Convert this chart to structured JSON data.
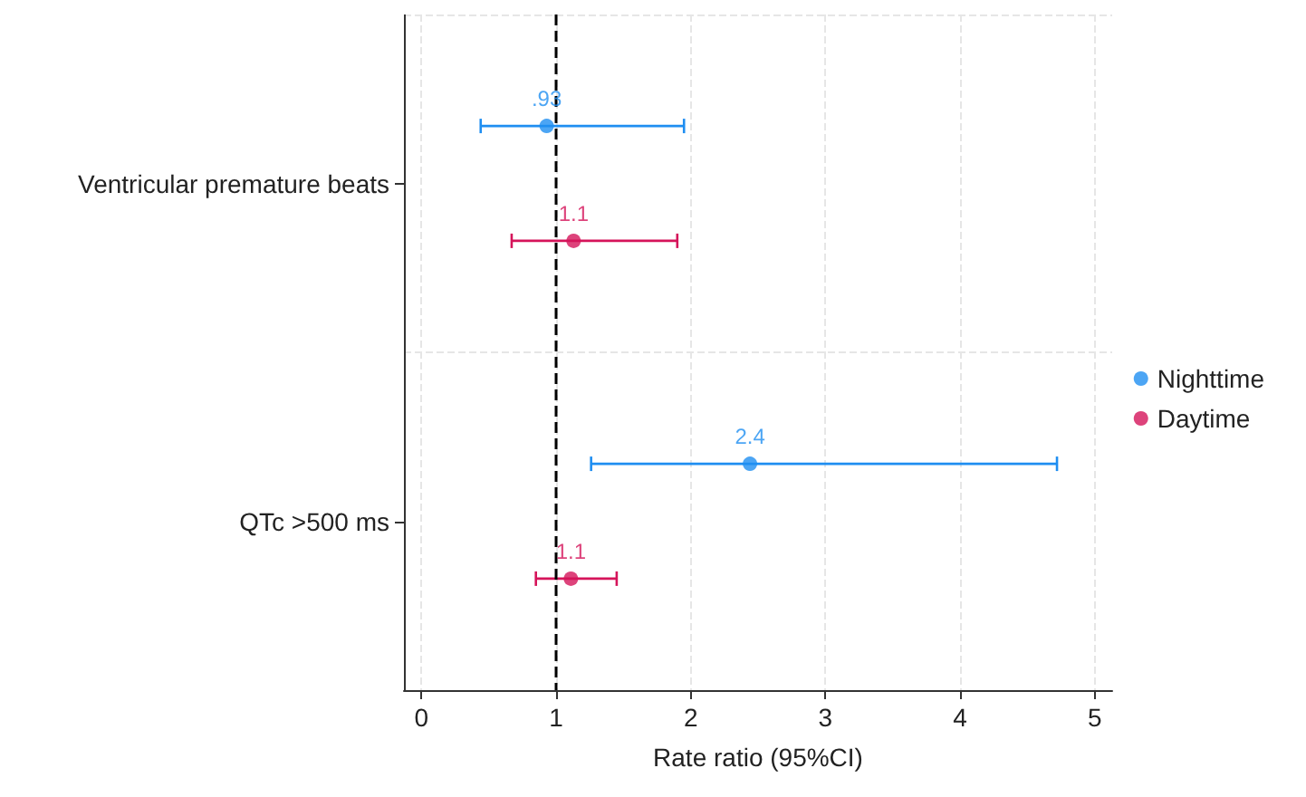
{
  "chart_data": {
    "type": "scatter",
    "orientation": "horizontal",
    "xlabel": "Rate ratio (95%CI)",
    "categories": [
      "Ventricular premature beats",
      "QTc >500 ms"
    ],
    "series": [
      {
        "name": "Nighttime",
        "color": "#1f8ef1",
        "values": [
          0.93,
          2.44
        ],
        "errors": [
          [
            0.44,
            1.95
          ],
          [
            1.26,
            4.72
          ]
        ],
        "value_labels": [
          ".93",
          "2.4"
        ]
      },
      {
        "name": "Daytime",
        "color": "#d5145a",
        "values": [
          1.13,
          1.11
        ],
        "errors": [
          [
            0.67,
            1.9
          ],
          [
            0.85,
            1.45
          ]
        ],
        "value_labels": [
          "1.1",
          "1.1"
        ]
      }
    ],
    "xlim": [
      -0.13,
      5.13
    ],
    "xticks": [
      0,
      1,
      2,
      3,
      4,
      5
    ],
    "ref_lines": [
      {
        "axis": "x",
        "value": 1,
        "color": "#000000",
        "line_style": "dashed"
      }
    ],
    "grid": true,
    "legend": "right",
    "marker": "circle"
  }
}
